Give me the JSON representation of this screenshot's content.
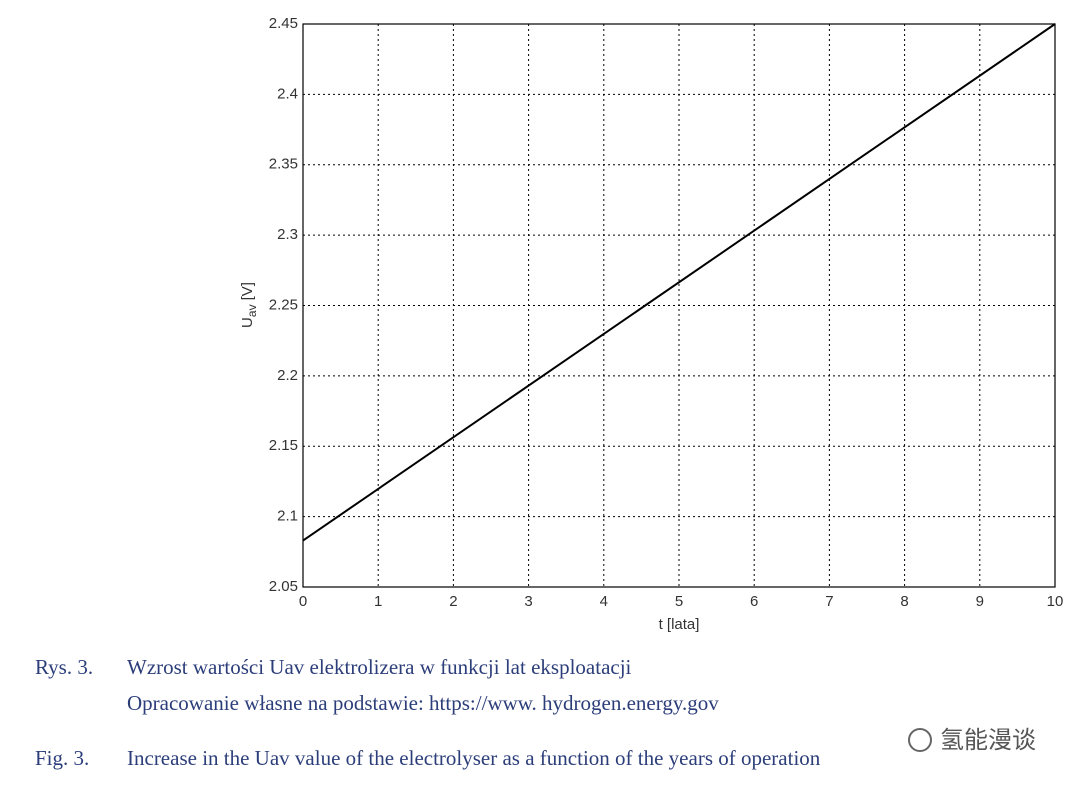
{
  "chart_data": {
    "type": "line",
    "x": [
      0,
      10
    ],
    "series": [
      {
        "values": [
          2.083,
          2.45
        ],
        "color": "#000000"
      }
    ],
    "xlim": [
      0,
      10
    ],
    "xticks": [
      0,
      1,
      2,
      3,
      4,
      5,
      6,
      7,
      8,
      9,
      10
    ],
    "ylim": [
      2.05,
      2.45
    ],
    "yticks": [
      2.05,
      2.1,
      2.15,
      2.2,
      2.25,
      2.3,
      2.35,
      2.4,
      2.45
    ],
    "grid": true,
    "xlabel": "t [lata]",
    "ylabel": "U",
    "ylabel_subscript": "av",
    "ylabel_unit": "[V]"
  },
  "caption": {
    "pl_number": "Rys. 3.",
    "pl_text": "Wzrost wartości Uav elektrolizera w funkcji lat eksploatacji",
    "source": "Opracowanie własne na podstawie: https://www. hydrogen.energy.gov",
    "en_number": "Fig. 3.",
    "en_text": "Increase in the Uav value of the electrolyser as a function of the years of operation"
  },
  "watermark": "氢能漫谈"
}
